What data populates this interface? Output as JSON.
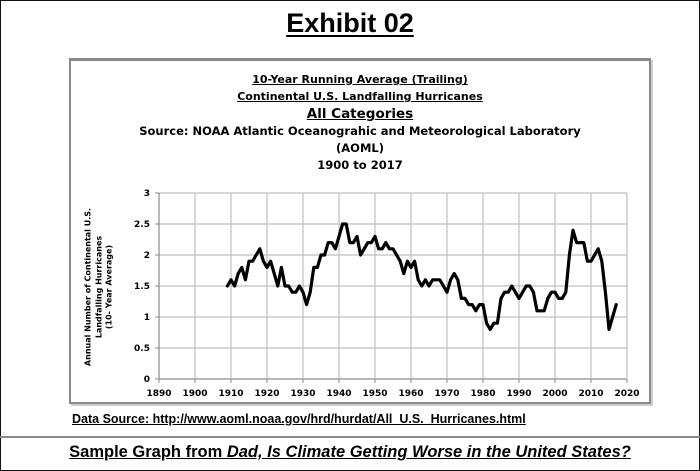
{
  "exhibit_title": "Exhibit 02",
  "chart_data": {
    "type": "line",
    "title_lines": [
      "10-Year Running Average (Trailing)",
      "Continental U.S. Landfalling Hurricanes",
      "All Categories",
      "Source: NOAA Atlantic Oceanograhic and Meteorological Laboratory",
      "(AOML)",
      "1900 to 2017"
    ],
    "ylabel_lines": [
      "Annual Number of Continental U.S.",
      "Landfalling  Hurricanes",
      "(10- Year Average)"
    ],
    "xlabel": "",
    "xlim": [
      1890,
      2020
    ],
    "ylim": [
      0,
      3
    ],
    "grid": true,
    "x_ticks": [
      "1890",
      "1900",
      "1910",
      "1920",
      "1930",
      "1940",
      "1950",
      "1960",
      "1970",
      "1980",
      "1990",
      "2000",
      "2010",
      "2020"
    ],
    "y_ticks": [
      "0",
      "0.5",
      "1",
      "1.5",
      "2",
      "2.5",
      "3"
    ],
    "series": [
      {
        "name": "10-Year Running Average",
        "color": "#000000",
        "x": [
          1909,
          1910,
          1911,
          1912,
          1913,
          1914,
          1915,
          1916,
          1917,
          1918,
          1919,
          1920,
          1921,
          1922,
          1923,
          1924,
          1925,
          1926,
          1927,
          1928,
          1929,
          1930,
          1931,
          1932,
          1933,
          1934,
          1935,
          1936,
          1937,
          1938,
          1939,
          1940,
          1941,
          1942,
          1943,
          1944,
          1945,
          1946,
          1947,
          1948,
          1949,
          1950,
          1951,
          1952,
          1953,
          1954,
          1955,
          1956,
          1957,
          1958,
          1959,
          1960,
          1961,
          1962,
          1963,
          1964,
          1965,
          1966,
          1967,
          1968,
          1969,
          1970,
          1971,
          1972,
          1973,
          1974,
          1975,
          1976,
          1977,
          1978,
          1979,
          1980,
          1981,
          1982,
          1983,
          1984,
          1985,
          1986,
          1987,
          1988,
          1989,
          1990,
          1991,
          1992,
          1993,
          1994,
          1995,
          1996,
          1997,
          1998,
          1999,
          2000,
          2001,
          2002,
          2003,
          2004,
          2005,
          2006,
          2007,
          2008,
          2009,
          2010,
          2011,
          2012,
          2013,
          2014,
          2015,
          2016,
          2017
        ],
        "values": [
          1.5,
          1.6,
          1.5,
          1.7,
          1.8,
          1.6,
          1.9,
          1.9,
          2.0,
          2.1,
          1.9,
          1.8,
          1.9,
          1.7,
          1.5,
          1.8,
          1.5,
          1.5,
          1.4,
          1.4,
          1.5,
          1.4,
          1.2,
          1.4,
          1.8,
          1.8,
          2.0,
          2.0,
          2.2,
          2.2,
          2.1,
          2.3,
          2.5,
          2.5,
          2.2,
          2.2,
          2.3,
          2.0,
          2.1,
          2.2,
          2.2,
          2.3,
          2.1,
          2.1,
          2.2,
          2.1,
          2.1,
          2.0,
          1.9,
          1.7,
          1.9,
          1.8,
          1.9,
          1.6,
          1.5,
          1.6,
          1.5,
          1.6,
          1.6,
          1.6,
          1.5,
          1.4,
          1.6,
          1.7,
          1.6,
          1.3,
          1.3,
          1.2,
          1.2,
          1.1,
          1.2,
          1.2,
          0.9,
          0.8,
          0.9,
          0.9,
          1.3,
          1.4,
          1.4,
          1.5,
          1.4,
          1.3,
          1.4,
          1.5,
          1.5,
          1.4,
          1.1,
          1.1,
          1.1,
          1.3,
          1.4,
          1.4,
          1.3,
          1.3,
          1.4,
          2.0,
          2.4,
          2.2,
          2.2,
          2.2,
          1.9,
          1.9,
          2.0,
          2.1,
          1.9,
          1.4,
          0.8,
          1.0,
          1.2
        ]
      }
    ]
  },
  "data_source": "Data Source: http://www.aoml.noaa.gov/hrd/hurdat/All_U.S._Hurricanes.html",
  "footer": {
    "prefix": "Sample Graph from ",
    "book_title": "Dad, Is Climate Getting Worse in the United States?"
  },
  "colors": {
    "line": "#000000",
    "grid": "#bdbdbd",
    "axis": "#8a8a8a",
    "frame": "#111111"
  }
}
